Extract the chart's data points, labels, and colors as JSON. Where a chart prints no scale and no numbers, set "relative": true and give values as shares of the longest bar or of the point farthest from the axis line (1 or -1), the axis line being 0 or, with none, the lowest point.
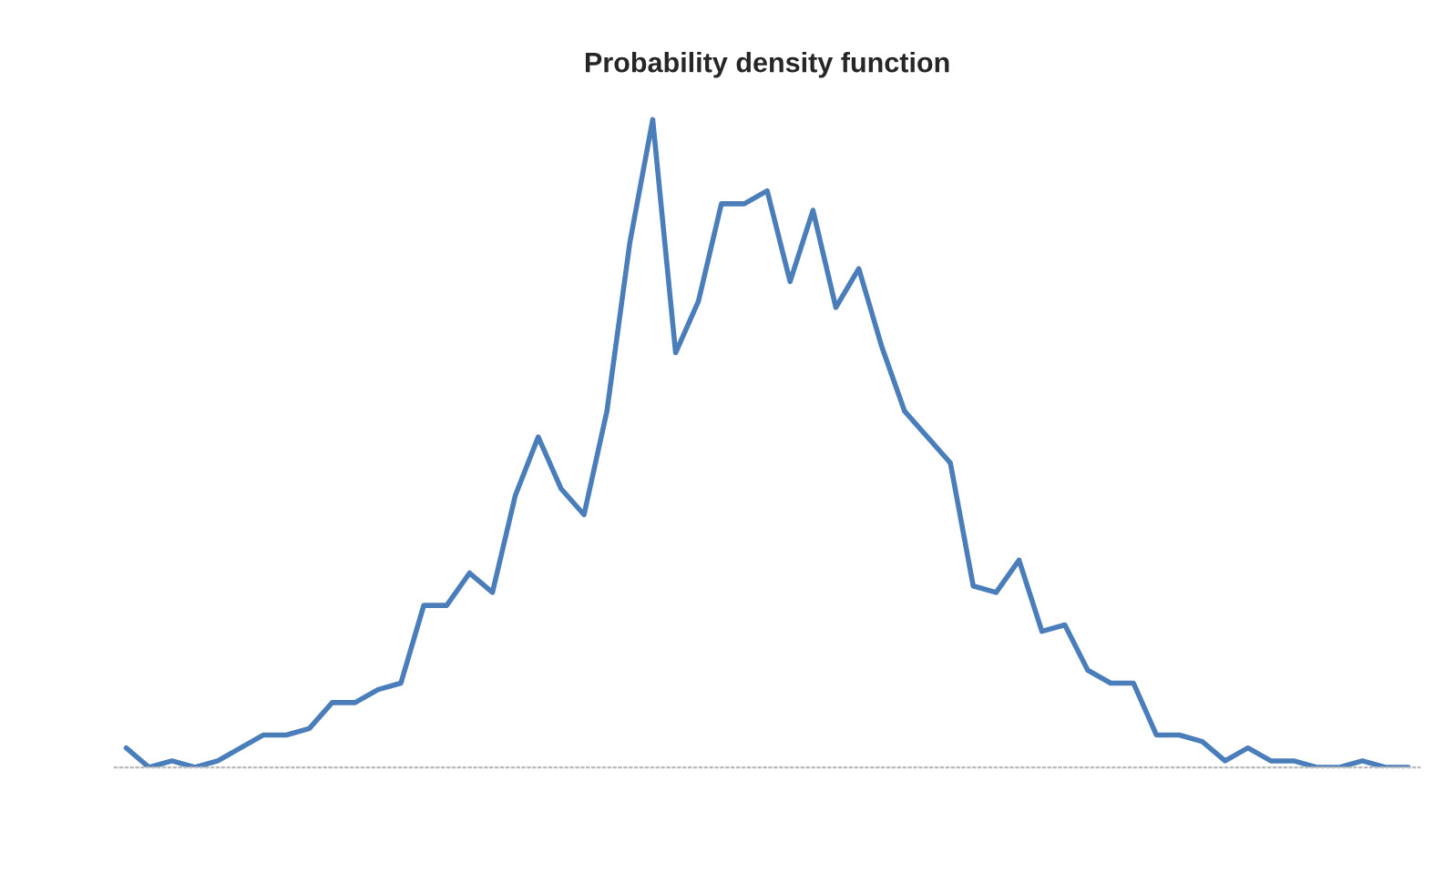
{
  "chart_data": {
    "type": "line",
    "title": "Probability density function",
    "relative": true,
    "categories": [
      null,
      null,
      null,
      null,
      null,
      null,
      null,
      null,
      null,
      null,
      null,
      null,
      null,
      null,
      null,
      null,
      null,
      null,
      null,
      null,
      null,
      null,
      null,
      null,
      null,
      null,
      null,
      null,
      null,
      null,
      null,
      null,
      null,
      null,
      null,
      null,
      null,
      null,
      null,
      null,
      null,
      null,
      null,
      null,
      null,
      null,
      null,
      null,
      null,
      null,
      null,
      null,
      null,
      null,
      null,
      null,
      null
    ],
    "series": [
      {
        "color": "#4a7ebb",
        "values": [
          0.03,
          0,
          0.01,
          0,
          0.01,
          0.03,
          0.05,
          0.05,
          0.06,
          0.1,
          0.1,
          0.12,
          0.13,
          0.25,
          0.25,
          0.3,
          0.27,
          0.42,
          0.51,
          0.43,
          0.39,
          0.55,
          0.81,
          1.0,
          0.64,
          0.72,
          0.87,
          0.87,
          0.89,
          0.75,
          0.86,
          0.71,
          0.77,
          0.65,
          0.55,
          0.51,
          0.47,
          0.28,
          0.27,
          0.32,
          0.21,
          0.22,
          0.15,
          0.13,
          0.13,
          0.05,
          0.05,
          0.04,
          0.01,
          0.03,
          0.01,
          0.01,
          0,
          0,
          0.01,
          0,
          0
        ]
      }
    ],
    "grid": false,
    "legend": false,
    "marker": "none",
    "line_style": "solid"
  }
}
